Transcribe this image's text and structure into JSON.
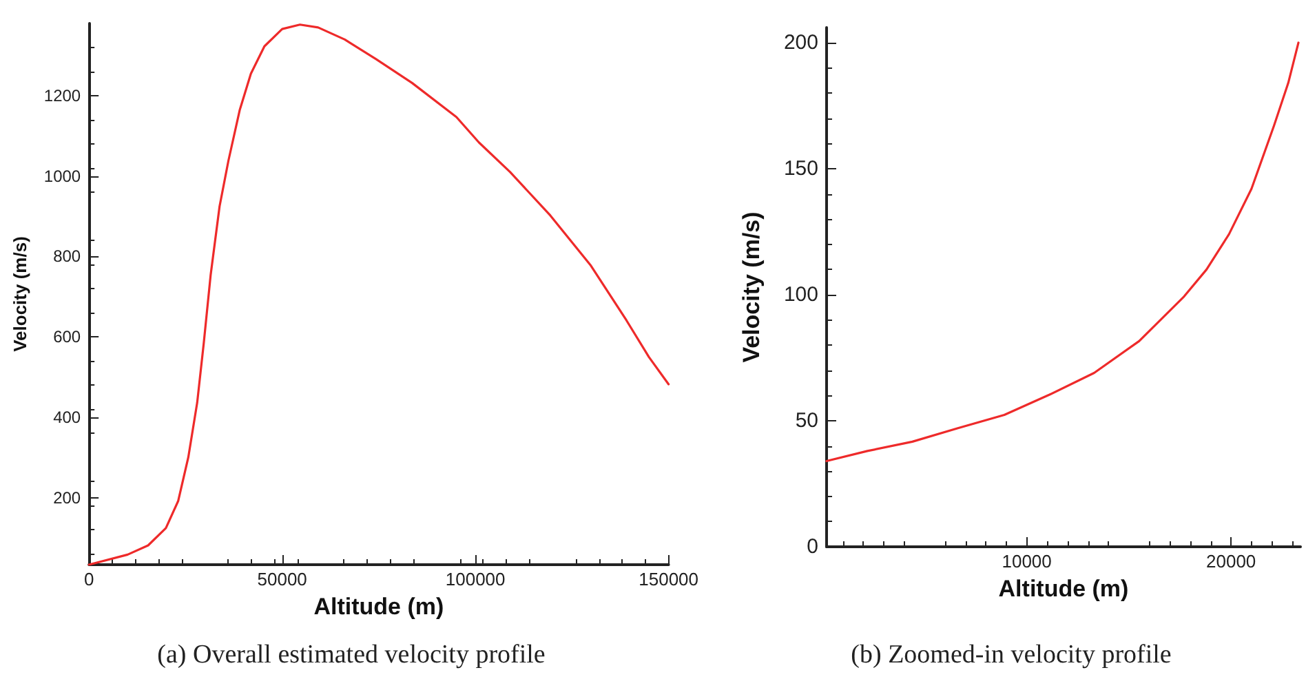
{
  "chart_data": [
    {
      "type": "line",
      "xlabel": "Altitude (m)",
      "ylabel": "Velocity (m/s)",
      "annotations": [
        "(a) Overall estimated velocity profile"
      ],
      "xlim": [
        0,
        150000
      ],
      "xticks": [
        0,
        50000,
        100000,
        150000
      ],
      "ylim": [
        33,
        1380
      ],
      "yticks": [
        200,
        400,
        600,
        800,
        1000,
        1200
      ],
      "grid": false,
      "marker": "none",
      "line_style": "solid",
      "series": [
        {
          "color": "#ee2a2a",
          "x": [
            0,
            10000,
            15300,
            19900,
            23100,
            25700,
            28000,
            29700,
            31500,
            33800,
            36100,
            39000,
            41900,
            45400,
            50000,
            54600,
            59300,
            66200,
            74300,
            83600,
            95100,
            100900,
            109000,
            119400,
            129900,
            139100,
            144900,
            150000
          ],
          "values": [
            33,
            58,
            81,
            124,
            192,
            300,
            436,
            584,
            755,
            925,
            1039,
            1164,
            1255,
            1323,
            1366,
            1377,
            1370,
            1340,
            1291,
            1232,
            1147,
            1084,
            1010,
            902,
            777,
            641,
            550,
            482
          ]
        }
      ]
    },
    {
      "type": "line",
      "xlabel": "Altitude (m)",
      "ylabel": "Velocity (m/s)",
      "annotations": [
        "(b) Zoomed-in velocity profile"
      ],
      "xlim": [
        200,
        23400
      ],
      "xticks": [
        10000,
        20000
      ],
      "ylim": [
        0,
        206
      ],
      "yticks": [
        0,
        50,
        100,
        150,
        200
      ],
      "grid": false,
      "marker": "none",
      "line_style": "solid",
      "series": [
        {
          "color": "#ee2a2a",
          "x": [
            200,
            2200,
            4400,
            6600,
            8900,
            11100,
            13300,
            15500,
            17700,
            18800,
            19900,
            21000,
            22100,
            22800,
            23300
          ],
          "values": [
            34,
            38,
            41.7,
            47,
            52.3,
            60.3,
            69,
            81.6,
            99.3,
            110,
            124,
            142,
            167,
            184,
            200
          ]
        }
      ]
    }
  ]
}
